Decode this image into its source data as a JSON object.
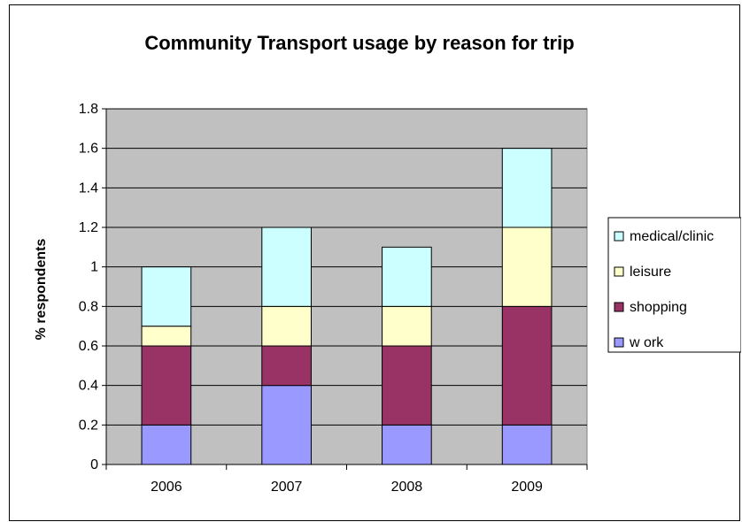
{
  "chart_data": {
    "type": "bar",
    "stacked": true,
    "title": "Community Transport usage by reason for trip",
    "xlabel": "",
    "ylabel": "% respondents",
    "categories": [
      "2006",
      "2007",
      "2008",
      "2009"
    ],
    "series": [
      {
        "name": "w ork",
        "values": [
          0.2,
          0.4,
          0.2,
          0.2
        ],
        "color": "#9999ff"
      },
      {
        "name": "shopping",
        "values": [
          0.4,
          0.2,
          0.4,
          0.6
        ],
        "color": "#993366"
      },
      {
        "name": "leisure",
        "values": [
          0.1,
          0.2,
          0.2,
          0.4
        ],
        "color": "#ffffcc"
      },
      {
        "name": "medical/clinic",
        "values": [
          0.3,
          0.4,
          0.3,
          0.4
        ],
        "color": "#ccffff"
      }
    ],
    "ylim": [
      0,
      1.8
    ],
    "yticks": [
      "0",
      "0.2",
      "0.4",
      "0.6",
      "0.8",
      "1",
      "1.2",
      "1.4",
      "1.6",
      "1.8"
    ],
    "grid": true,
    "plot_background": "#c0c0c0",
    "legend_position": "right",
    "legend_order": [
      "medical/clinic",
      "leisure",
      "shopping",
      "w ork"
    ]
  }
}
